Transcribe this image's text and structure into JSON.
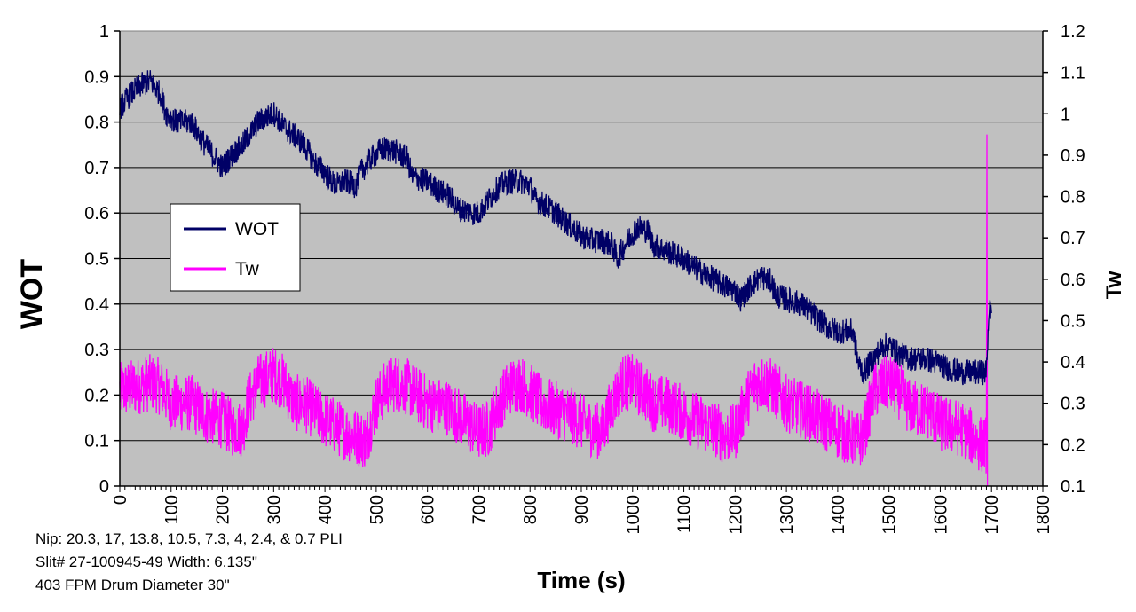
{
  "chart_data": {
    "type": "line",
    "title": "",
    "xlabel": "Time (s)",
    "ylabel_left": "WOT",
    "ylabel_right": "Tw",
    "xlim": [
      0,
      1800
    ],
    "ylim_left": [
      0,
      1
    ],
    "ylim_right": [
      0.1,
      1.2
    ],
    "x_ticks": [
      "0",
      "100",
      "200",
      "300",
      "400",
      "500",
      "600",
      "700",
      "800",
      "900",
      "1000",
      "1100",
      "1200",
      "1300",
      "1400",
      "1500",
      "1600",
      "1700",
      "1800"
    ],
    "y_left_ticks": [
      "0",
      "0.1",
      "0.2",
      "0.3",
      "0.4",
      "0.5",
      "0.6",
      "0.7",
      "0.8",
      "0.9",
      "1"
    ],
    "y_right_ticks": [
      "0.1",
      "0.2",
      "0.3",
      "0.4",
      "0.5",
      "0.6",
      "0.7",
      "0.8",
      "0.9",
      "1",
      "1.1",
      "1.2"
    ],
    "grid": "horizontal",
    "background": "#C0C0C0",
    "legend_position": "center-left",
    "series": [
      {
        "name": "WOT",
        "axis": "left",
        "color": "#000066",
        "x": [
          0,
          20,
          40,
          60,
          80,
          90,
          110,
          140,
          160,
          180,
          200,
          220,
          240,
          270,
          300,
          320,
          340,
          360,
          380,
          400,
          420,
          440,
          460,
          470,
          490,
          510,
          530,
          560,
          570,
          600,
          620,
          640,
          660,
          690,
          700,
          720,
          740,
          760,
          780,
          800,
          810,
          840,
          860,
          880,
          900,
          920,
          940,
          960,
          970,
          990,
          1010,
          1030,
          1040,
          1060,
          1080,
          1100,
          1120,
          1150,
          1180,
          1200,
          1210,
          1230,
          1250,
          1270,
          1280,
          1300,
          1330,
          1350,
          1380,
          1400,
          1430,
          1440,
          1450,
          1470,
          1490,
          1500,
          1520,
          1540,
          1570,
          1600,
          1610,
          1640,
          1670,
          1680,
          1690,
          1695,
          1700
        ],
        "y": [
          0.83,
          0.86,
          0.88,
          0.89,
          0.86,
          0.82,
          0.8,
          0.8,
          0.76,
          0.73,
          0.7,
          0.73,
          0.75,
          0.8,
          0.82,
          0.79,
          0.77,
          0.75,
          0.71,
          0.69,
          0.66,
          0.67,
          0.66,
          0.69,
          0.72,
          0.74,
          0.74,
          0.72,
          0.68,
          0.67,
          0.65,
          0.64,
          0.61,
          0.6,
          0.6,
          0.63,
          0.66,
          0.67,
          0.67,
          0.66,
          0.63,
          0.61,
          0.59,
          0.57,
          0.55,
          0.54,
          0.54,
          0.53,
          0.5,
          0.54,
          0.57,
          0.56,
          0.53,
          0.52,
          0.51,
          0.5,
          0.48,
          0.46,
          0.44,
          0.43,
          0.41,
          0.44,
          0.46,
          0.45,
          0.42,
          0.41,
          0.4,
          0.38,
          0.35,
          0.34,
          0.34,
          0.27,
          0.25,
          0.28,
          0.31,
          0.31,
          0.29,
          0.28,
          0.28,
          0.27,
          0.26,
          0.25,
          0.25,
          0.25,
          0.25,
          0.39,
          0.38
        ],
        "noise": 0.028
      },
      {
        "name": "Tw",
        "axis": "right",
        "color": "#FF00FF",
        "x": [
          0,
          30,
          60,
          80,
          100,
          140,
          170,
          200,
          220,
          240,
          250,
          270,
          300,
          320,
          340,
          360,
          400,
          440,
          480,
          500,
          520,
          540,
          560,
          580,
          600,
          640,
          680,
          700,
          720,
          740,
          760,
          780,
          800,
          820,
          840,
          880,
          920,
          940,
          960,
          980,
          1000,
          1020,
          1040,
          1060,
          1080,
          1120,
          1160,
          1180,
          1200,
          1220,
          1240,
          1260,
          1280,
          1300,
          1340,
          1380,
          1420,
          1440,
          1450,
          1470,
          1500,
          1520,
          1540,
          1580,
          1600,
          1640,
          1680,
          1690,
          1691,
          1692,
          1693
        ],
        "y": [
          0.33,
          0.34,
          0.35,
          0.34,
          0.3,
          0.3,
          0.27,
          0.26,
          0.24,
          0.24,
          0.3,
          0.35,
          0.37,
          0.35,
          0.3,
          0.3,
          0.26,
          0.23,
          0.21,
          0.3,
          0.34,
          0.35,
          0.34,
          0.32,
          0.3,
          0.29,
          0.25,
          0.23,
          0.24,
          0.3,
          0.34,
          0.35,
          0.33,
          0.3,
          0.29,
          0.27,
          0.24,
          0.23,
          0.3,
          0.35,
          0.35,
          0.33,
          0.3,
          0.3,
          0.29,
          0.26,
          0.24,
          0.22,
          0.23,
          0.3,
          0.35,
          0.35,
          0.33,
          0.3,
          0.28,
          0.25,
          0.22,
          0.21,
          0.22,
          0.33,
          0.35,
          0.33,
          0.29,
          0.28,
          0.25,
          0.24,
          0.2,
          0.2,
          0.95,
          0.1,
          0.1
        ],
        "noise": 0.07
      }
    ]
  },
  "notes": {
    "line1": "Nip: 20.3, 17, 13.8, 10.5, 7.3, 4, 2.4, & 0.7 PLI",
    "line2": "Slit# 27-100945-49 Width: 6.135\"",
    "line3": "403 FPM Drum Diameter 30\""
  }
}
